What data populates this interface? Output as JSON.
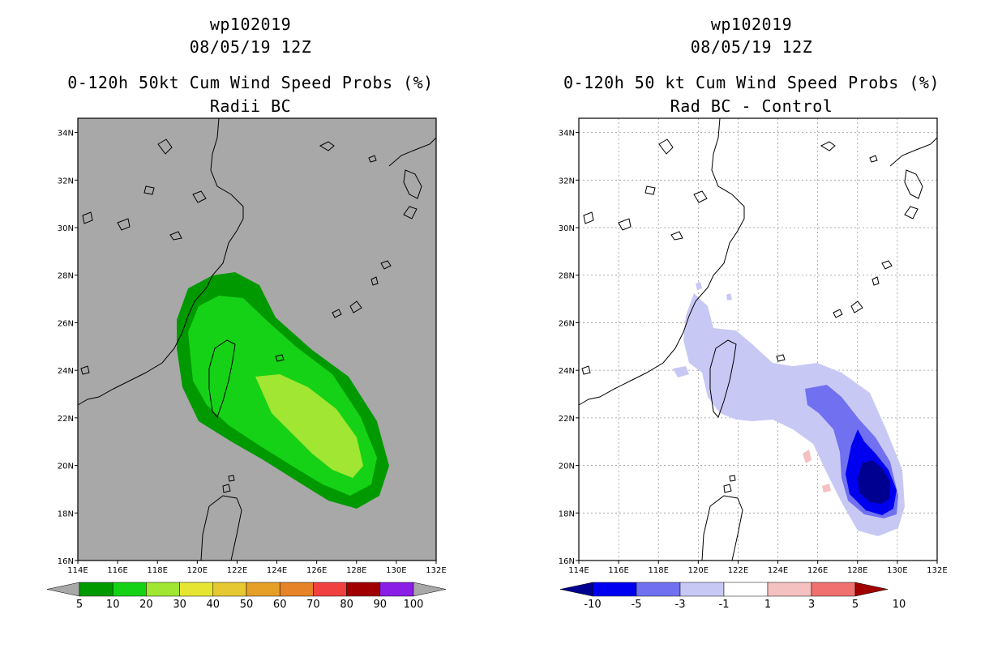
{
  "left_panel": {
    "storm_id": "wp102019",
    "datetime": "08/05/19 12Z",
    "title": "0-120h 50kt Cum Wind Speed Probs (%)",
    "subtitle": "Radii BC",
    "background_color": "#a8a8a8",
    "colorbar": {
      "labels": [
        "5",
        "10",
        "20",
        "30",
        "40",
        "50",
        "60",
        "70",
        "80",
        "90",
        "100"
      ],
      "colors": [
        "#009a00",
        "#16d216",
        "#a0e632",
        "#e6e632",
        "#e6c832",
        "#e6a028",
        "#e68228",
        "#f04040",
        "#a00000",
        "#8a1ee6"
      ]
    }
  },
  "right_panel": {
    "storm_id": "wp102019",
    "datetime": "08/05/19 12Z",
    "title": "0-120h 50 kt Cum Wind Speed Probs (%)",
    "subtitle": "Rad BC - Control",
    "background_color": "#ffffff",
    "colorbar": {
      "labels": [
        "-10",
        "-5",
        "-3",
        "-1",
        "1",
        "3",
        "5",
        "10"
      ],
      "colors": [
        "#000090",
        "#0000f0",
        "#7070f0",
        "#c8c8f5",
        "#ffffff",
        "#f5c0c0",
        "#f07070",
        "#a00000"
      ]
    }
  },
  "axes": {
    "lat_ticks": [
      "16N",
      "18N",
      "20N",
      "22N",
      "24N",
      "26N",
      "28N",
      "30N",
      "32N",
      "34N"
    ],
    "lon_ticks": [
      "114E",
      "116E",
      "118E",
      "120E",
      "122E",
      "124E",
      "126E",
      "128E",
      "130E",
      "132E"
    ]
  }
}
